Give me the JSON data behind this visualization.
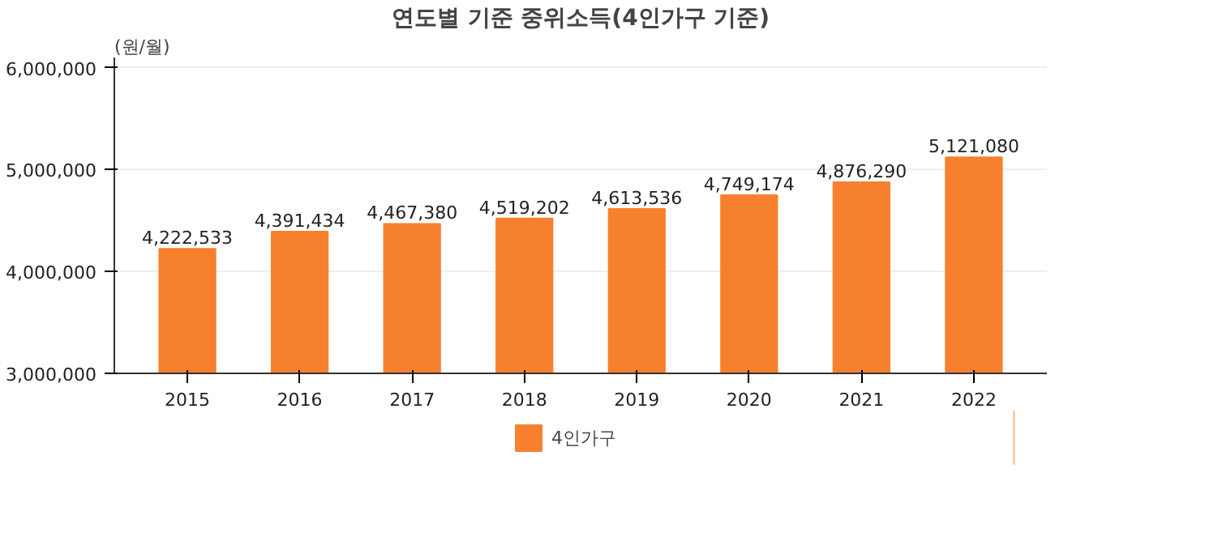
{
  "chart_data": {
    "type": "bar",
    "title": "연도별 기준 중위소득(4인가구 기준)",
    "ylabel": "(원/월)",
    "categories": [
      "2015",
      "2016",
      "2017",
      "2018",
      "2019",
      "2020",
      "2021",
      "2022"
    ],
    "series": [
      {
        "name": "4인가구",
        "color": "#f7802f",
        "values": [
          4222533,
          4391434,
          4467380,
          4519202,
          4613536,
          4749174,
          4876290,
          5121080
        ],
        "value_labels": [
          "4,222,533",
          "4,391,434",
          "4,467,380",
          "4,519,202",
          "4,613,536",
          "4,749,174",
          "4,876,290",
          "5,121,080"
        ]
      }
    ],
    "ylim": [
      3000000,
      6100000
    ],
    "yticks": [
      {
        "value": 3000000,
        "label": "3,000,000"
      },
      {
        "value": 4000000,
        "label": "4,000,000"
      },
      {
        "value": 5000000,
        "label": "5,000,000"
      },
      {
        "value": 6000000,
        "label": "6,000,000"
      }
    ],
    "grid": "y",
    "legend": "bottom"
  }
}
